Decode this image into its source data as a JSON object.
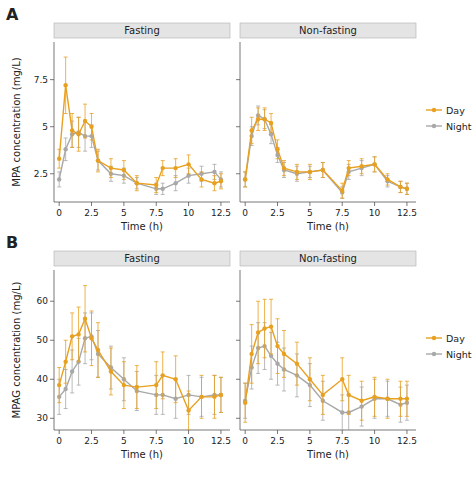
{
  "chart_data": [
    {
      "type": "line",
      "title": "Fasting",
      "annotations": [
        "A"
      ],
      "x": [
        0.0,
        0.5,
        1.0,
        1.5,
        2.0,
        2.5,
        3.0,
        4.0,
        5.0,
        6.0,
        7.5,
        8.0,
        9.0,
        10.0,
        11.0,
        12.0,
        12.5
      ],
      "series": [
        {
          "name": "Night",
          "color": "#A8A8A8",
          "marker": "circle",
          "values": [
            2.2,
            3.8,
            4.6,
            4.7,
            4.5,
            4.5,
            3.2,
            2.5,
            2.4,
            2.0,
            1.7,
            1.7,
            2.0,
            2.4,
            2.5,
            2.6,
            2.2
          ],
          "errors": [
            0.4,
            0.6,
            0.7,
            0.8,
            0.8,
            0.6,
            0.5,
            0.4,
            0.4,
            0.3,
            0.3,
            0.3,
            0.4,
            0.4,
            0.4,
            0.4,
            0.4
          ]
        },
        {
          "name": "Day",
          "color": "#E8A020",
          "marker": "circle",
          "values": [
            3.3,
            7.2,
            4.8,
            4.6,
            5.3,
            5.0,
            3.2,
            2.8,
            2.7,
            2.0,
            1.9,
            2.8,
            2.8,
            3.0,
            2.2,
            2.0,
            2.1
          ],
          "errors": [
            0.5,
            1.5,
            0.9,
            0.9,
            0.9,
            0.7,
            0.6,
            0.5,
            0.5,
            0.4,
            0.4,
            0.4,
            0.5,
            0.5,
            0.4,
            0.4,
            0.4
          ]
        }
      ],
      "xlabel": "Time (h)",
      "ylabel": "MPA concentration (mg/L)",
      "xlim": [
        -0.4,
        13.2
      ],
      "xticks": [
        0,
        2.5,
        5,
        7.5,
        10,
        12.5
      ],
      "ylim": [
        1.0,
        9.5
      ],
      "yticks": [
        2.5,
        5,
        7.5
      ]
    },
    {
      "type": "line",
      "title": "Non-fasting",
      "legend": "right",
      "tick_labels": "x",
      "x": [
        0.0,
        0.5,
        1.0,
        1.5,
        2.0,
        2.5,
        3.0,
        4.0,
        5.0,
        6.0,
        7.5,
        8.0,
        9.0,
        10.0,
        11.0,
        12.0,
        12.5
      ],
      "series": [
        {
          "name": "Night",
          "color": "#A8A8A8",
          "marker": "circle",
          "values": [
            2.2,
            4.5,
            5.6,
            5.4,
            4.6,
            3.5,
            2.7,
            2.5,
            2.6,
            2.7,
            1.5,
            2.6,
            2.8,
            3.0,
            2.1,
            1.8,
            1.7
          ],
          "errors": [
            0.4,
            0.5,
            0.5,
            0.5,
            0.5,
            0.4,
            0.4,
            0.4,
            0.3,
            0.4,
            0.3,
            0.4,
            0.4,
            0.4,
            0.3,
            0.3,
            0.3
          ]
        },
        {
          "name": "Day",
          "color": "#E8A020",
          "marker": "circle",
          "values": [
            2.2,
            4.8,
            5.4,
            5.4,
            5.2,
            3.8,
            2.8,
            2.6,
            2.6,
            2.7,
            1.6,
            2.8,
            2.9,
            3.0,
            2.2,
            1.8,
            1.7
          ],
          "errors": [
            0.4,
            0.7,
            0.6,
            0.6,
            0.5,
            0.5,
            0.4,
            0.4,
            0.4,
            0.4,
            0.4,
            0.4,
            0.4,
            0.4,
            0.3,
            0.3,
            0.3
          ]
        }
      ],
      "xlabel": "Time (h)",
      "xlim": [
        -0.4,
        13.2
      ],
      "xticks": [
        0,
        2.5,
        5,
        7.5,
        10,
        12.5
      ],
      "ylim": [
        1.0,
        9.5
      ],
      "yticks": [
        2.5,
        5,
        7.5
      ]
    },
    {
      "type": "line",
      "title": "Fasting",
      "annotations": [
        "B"
      ],
      "x": [
        0.0,
        0.5,
        1.0,
        1.5,
        2.0,
        2.5,
        3.0,
        4.0,
        5.0,
        6.0,
        7.5,
        8.0,
        9.0,
        10.0,
        11.0,
        12.0,
        12.5
      ],
      "series": [
        {
          "name": "Night",
          "color": "#A8A8A8",
          "marker": "circle",
          "values": [
            35.5,
            37.5,
            42.0,
            44.5,
            50.5,
            51.0,
            46.5,
            43.0,
            40.0,
            37.0,
            36.0,
            36.0,
            35.0,
            36.0,
            35.5,
            36.0,
            36.0
          ],
          "errors": [
            4.5,
            5.0,
            5.5,
            6.0,
            6.5,
            6.0,
            6.0,
            5.5,
            5.5,
            5.0,
            5.0,
            5.0,
            5.0,
            5.0,
            5.0,
            5.0,
            4.5
          ]
        },
        {
          "name": "Day",
          "color": "#E8A020",
          "marker": "circle",
          "values": [
            38.5,
            44.5,
            51.0,
            51.5,
            55.5,
            50.5,
            47.5,
            42.0,
            38.5,
            38.0,
            38.5,
            41.0,
            40.0,
            32.0,
            35.5,
            35.5,
            36.0
          ],
          "errors": [
            4.5,
            5.5,
            6.0,
            7.0,
            8.5,
            7.0,
            7.0,
            6.0,
            6.0,
            5.5,
            6.0,
            6.0,
            6.0,
            5.0,
            5.5,
            5.5,
            4.5
          ]
        }
      ],
      "xlabel": "Time (h)",
      "ylabel": "MPAG concentration (mg/L)",
      "xlim": [
        -0.4,
        13.2
      ],
      "xticks": [
        0,
        2.5,
        5,
        7.5,
        10,
        12.5
      ],
      "ylim": [
        27,
        68
      ],
      "yticks": [
        30,
        40,
        50,
        60
      ]
    },
    {
      "type": "line",
      "title": "Non-fasting",
      "legend": "right",
      "tick_labels": "x",
      "x": [
        0.0,
        0.5,
        1.0,
        1.5,
        2.0,
        2.5,
        3.0,
        4.0,
        5.0,
        6.0,
        7.5,
        8.0,
        9.0,
        10.0,
        11.0,
        12.0,
        12.5
      ],
      "series": [
        {
          "name": "Night",
          "color": "#A8A8A8",
          "marker": "circle",
          "values": [
            34.5,
            43.0,
            48.0,
            48.5,
            46.0,
            44.0,
            42.5,
            41.0,
            38.5,
            34.5,
            31.5,
            31.5,
            33.0,
            35.0,
            35.0,
            33.5,
            34.0
          ],
          "errors": [
            4.5,
            5.5,
            6.5,
            6.0,
            6.0,
            5.5,
            5.5,
            5.5,
            5.5,
            5.0,
            4.5,
            4.5,
            5.0,
            5.0,
            4.5,
            4.5,
            4.5
          ]
        },
        {
          "name": "Day",
          "color": "#E8A020",
          "marker": "circle",
          "values": [
            34.0,
            46.5,
            52.0,
            53.0,
            53.5,
            48.5,
            46.5,
            44.0,
            40.0,
            36.0,
            40.0,
            36.0,
            34.5,
            35.5,
            35.0,
            35.0,
            35.0
          ],
          "errors": [
            5.0,
            7.5,
            8.0,
            7.5,
            7.0,
            7.0,
            6.0,
            5.5,
            5.5,
            5.0,
            5.5,
            5.0,
            5.0,
            5.0,
            5.0,
            4.5,
            4.5
          ]
        }
      ],
      "xlabel": "Time (h)",
      "xlim": [
        -0.4,
        13.2
      ],
      "xticks": [
        0,
        2.5,
        5,
        7.5,
        10,
        12.5
      ],
      "ylim": [
        27,
        68
      ],
      "yticks": [
        30,
        40,
        50,
        60
      ]
    }
  ]
}
